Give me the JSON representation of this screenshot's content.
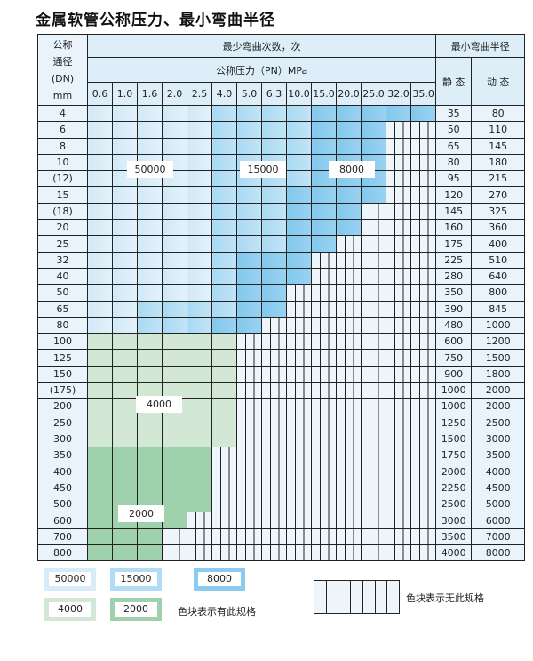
{
  "title": "金属软管公称压力、最小弯曲半径",
  "header": {
    "dn_label": [
      "公称",
      "通径",
      "(DN)",
      "mm"
    ],
    "cycles_label": "最少弯曲次数，次",
    "pressure_label": "公称压力（PN）MPa",
    "radius_label": "最小弯曲半径",
    "static_label": "静 态",
    "dynamic_label": "动 态",
    "pressures": [
      "0.6",
      "1.0",
      "1.6",
      "2.0",
      "2.5",
      "4.0",
      "5.0",
      "6.3",
      "10.0",
      "15.0",
      "20.0",
      "25.0",
      "32.0",
      "35.0"
    ]
  },
  "fill_legend": {
    "L": "50000",
    "M": "15000",
    "D": "8000",
    "G": "4000",
    "H": "2000",
    "N": "无此规格"
  },
  "colors": {
    "L": "#d6ecf8",
    "M": "#b0dcf4",
    "D": "#8acbef",
    "G": "#d3e8d4",
    "H": "#9fd2ac",
    "N": "#eef5fb"
  },
  "rows": [
    {
      "dn": "4",
      "static": "35",
      "dynamic": "80",
      "fill": "LLLLLMMMMDDDDD"
    },
    {
      "dn": "6",
      "static": "50",
      "dynamic": "110",
      "fill": "LLLLLMMMMDDDNN"
    },
    {
      "dn": "8",
      "static": "65",
      "dynamic": "145",
      "fill": "LLLLLMMMMDDDNN"
    },
    {
      "dn": "10",
      "static": "80",
      "dynamic": "180",
      "fill": "LLLLLMMMMDDDNN"
    },
    {
      "dn": "(12)",
      "static": "95",
      "dynamic": "215",
      "fill": "LLLLLMMMMDDDNN"
    },
    {
      "dn": "15",
      "static": "120",
      "dynamic": "270",
      "fill": "LLLLLMMMDDDDNN"
    },
    {
      "dn": "(18)",
      "static": "145",
      "dynamic": "325",
      "fill": "LLLLLMMMDDDNNN"
    },
    {
      "dn": "20",
      "static": "160",
      "dynamic": "360",
      "fill": "LLLLLMMMDDDNNN"
    },
    {
      "dn": "25",
      "static": "175",
      "dynamic": "400",
      "fill": "LLLLLMMMDDNNNN"
    },
    {
      "dn": "32",
      "static": "225",
      "dynamic": "510",
      "fill": "LLLLLMDDDNNNNN"
    },
    {
      "dn": "40",
      "static": "280",
      "dynamic": "640",
      "fill": "LLLLLMDDDNNNNN"
    },
    {
      "dn": "50",
      "static": "350",
      "dynamic": "800",
      "fill": "LLLLLMDDNNNNNN"
    },
    {
      "dn": "65",
      "static": "390",
      "dynamic": "845",
      "fill": "LLMMMMDDNNNNNN"
    },
    {
      "dn": "80",
      "static": "480",
      "dynamic": "1000",
      "fill": "LLMMMDDNNNNNNN"
    },
    {
      "dn": "100",
      "static": "600",
      "dynamic": "1200",
      "fill": "GGGGGGNNNNNNNN"
    },
    {
      "dn": "125",
      "static": "750",
      "dynamic": "1500",
      "fill": "GGGGGGNNNNNNNN"
    },
    {
      "dn": "150",
      "static": "900",
      "dynamic": "1800",
      "fill": "GGGGGGNNNNNNNN"
    },
    {
      "dn": "(175)",
      "static": "1000",
      "dynamic": "2000",
      "fill": "GGGGGGNNNNNNNN"
    },
    {
      "dn": "200",
      "static": "1000",
      "dynamic": "2000",
      "fill": "GGGGGGNNNNNNNN"
    },
    {
      "dn": "250",
      "static": "1250",
      "dynamic": "2500",
      "fill": "GGGGGGNNNNNNNN"
    },
    {
      "dn": "300",
      "static": "1500",
      "dynamic": "3000",
      "fill": "GGGGGGNNNNNNNN"
    },
    {
      "dn": "350",
      "static": "1750",
      "dynamic": "3500",
      "fill": "HHHHHNNNNNNNNN"
    },
    {
      "dn": "400",
      "static": "2000",
      "dynamic": "4000",
      "fill": "HHHHHNNNNNNNNN"
    },
    {
      "dn": "450",
      "static": "2250",
      "dynamic": "4500",
      "fill": "HHHHHNNNNNNNNN"
    },
    {
      "dn": "500",
      "static": "2500",
      "dynamic": "5000",
      "fill": "HHHHHNNNNNNNNN"
    },
    {
      "dn": "600",
      "static": "3000",
      "dynamic": "6000",
      "fill": "HHHHNNNNNNNNNN"
    },
    {
      "dn": "700",
      "static": "3500",
      "dynamic": "7000",
      "fill": "HHHNNNNNNNNNNN"
    },
    {
      "dn": "800",
      "static": "4000",
      "dynamic": "8000",
      "fill": "HHHNNNNNNNNNNN"
    }
  ],
  "region_labels": {
    "L": "50000",
    "M": "15000",
    "D": "8000",
    "G": "4000",
    "H": "2000"
  },
  "legend": {
    "l50000": "50000",
    "l15000": "15000",
    "l8000": "8000",
    "l4000": "4000",
    "l2000": "2000",
    "has_spec": "色块表示有此规格",
    "no_spec": "色块表示无此规格"
  }
}
